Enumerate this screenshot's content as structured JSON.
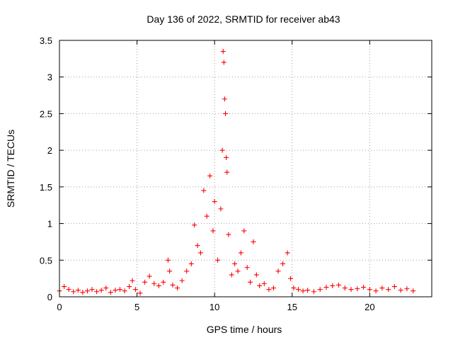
{
  "chart_data": {
    "type": "scatter",
    "title": "Day 136 of 2022, SRMTID for receiver ab43",
    "xlabel": "GPS time / hours",
    "ylabel": "SRMTID / TECUs",
    "xlim": [
      0,
      24
    ],
    "ylim": [
      0,
      3.5
    ],
    "xticks": [
      0,
      5,
      10,
      15,
      20
    ],
    "xtick_labels": [
      "0",
      "5",
      "10",
      "15",
      "20"
    ],
    "yticks": [
      0,
      0.5,
      1,
      1.5,
      2,
      2.5,
      3,
      3.5
    ],
    "ytick_labels": [
      "0",
      "0.5",
      "1",
      "1.5",
      "2",
      "2.5",
      "3",
      "3.5"
    ],
    "grid": true,
    "marker": "+",
    "series": [
      {
        "name": "SRMTID",
        "color": "#ff0000",
        "x": [
          0.0,
          0.3,
          0.6,
          0.9,
          1.2,
          1.5,
          1.8,
          2.1,
          2.4,
          2.7,
          3.0,
          3.3,
          3.6,
          3.9,
          4.2,
          4.5,
          4.7,
          4.9,
          5.2,
          5.5,
          5.8,
          6.1,
          6.4,
          6.7,
          7.0,
          7.1,
          7.3,
          7.6,
          7.9,
          8.2,
          8.5,
          8.7,
          8.9,
          9.1,
          9.3,
          9.5,
          9.7,
          9.9,
          10.0,
          10.2,
          10.4,
          10.5,
          10.55,
          10.6,
          10.65,
          10.7,
          10.75,
          10.8,
          10.9,
          11.1,
          11.3,
          11.5,
          11.7,
          11.9,
          12.1,
          12.3,
          12.5,
          12.7,
          12.9,
          13.2,
          13.5,
          13.8,
          14.1,
          14.4,
          14.7,
          14.9,
          15.1,
          15.4,
          15.7,
          16.0,
          16.4,
          16.8,
          17.2,
          17.6,
          18.0,
          18.4,
          18.8,
          19.2,
          19.6,
          20.0,
          20.4,
          20.8,
          21.2,
          21.6,
          22.0,
          22.4,
          22.8
        ],
        "y": [
          0.08,
          0.14,
          0.1,
          0.07,
          0.09,
          0.06,
          0.08,
          0.1,
          0.07,
          0.09,
          0.12,
          0.06,
          0.09,
          0.1,
          0.08,
          0.14,
          0.22,
          0.1,
          0.05,
          0.2,
          0.28,
          0.18,
          0.15,
          0.2,
          0.5,
          0.35,
          0.16,
          0.12,
          0.22,
          0.35,
          0.45,
          0.98,
          0.7,
          0.6,
          1.45,
          1.1,
          1.65,
          0.9,
          1.3,
          0.5,
          1.2,
          2.0,
          3.35,
          3.2,
          2.7,
          2.5,
          1.9,
          1.7,
          0.85,
          0.3,
          0.45,
          0.35,
          0.6,
          0.9,
          0.4,
          0.2,
          0.75,
          0.3,
          0.15,
          0.18,
          0.1,
          0.12,
          0.35,
          0.45,
          0.6,
          0.25,
          0.12,
          0.1,
          0.08,
          0.09,
          0.07,
          0.1,
          0.13,
          0.15,
          0.16,
          0.12,
          0.1,
          0.11,
          0.13,
          0.1,
          0.08,
          0.12,
          0.1,
          0.14,
          0.09,
          0.11,
          0.08
        ]
      }
    ]
  }
}
